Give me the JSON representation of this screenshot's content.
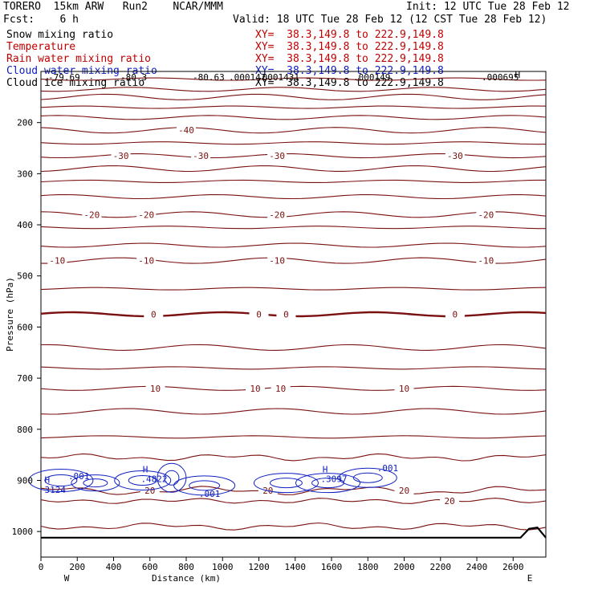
{
  "header": {
    "model": "TORERO  15km ARW   Run2    NCAR/MMM",
    "init": "Init: 12 UTC Tue 28 Feb 12",
    "fcst": "Fcst:    6 h",
    "valid": "Valid: 18 UTC Tue 28 Feb 12 (12 CST Tue 28 Feb 12)"
  },
  "legend": [
    {
      "label": "Snow mixing ratio",
      "xy": "XY=  38.3,149.8 to 222.9,149.8",
      "color": "#000000"
    },
    {
      "label": "Temperature",
      "xy": "XY=  38.3,149.8 to 222.9,149.8",
      "color": "#c00000"
    },
    {
      "label": "Rain water mixing ratio",
      "xy": "XY=  38.3,149.8 to 222.9,149.8",
      "color": "#c00000"
    },
    {
      "label": "Cloud water mixing ratio",
      "xy": "XY=  38.3,149.8 to 222.9,149.8",
      "color": "#1020c0"
    },
    {
      "label": "Cloud ice mixing ratio",
      "xy": "XY=  38.3,149.8 to 222.9,149.8",
      "color": "#000000"
    }
  ],
  "chart_data": {
    "type": "contour-cross-section",
    "xlabel": "Distance (km)",
    "ylabel": "Pressure (hPa)",
    "xlim": [
      0,
      2780
    ],
    "ylim": [
      1050,
      100
    ],
    "x_ticks": [
      0,
      200,
      400,
      600,
      800,
      1000,
      1200,
      1400,
      1600,
      1800,
      2000,
      2200,
      2400,
      2600
    ],
    "y_ticks": [
      200,
      300,
      400,
      500,
      600,
      700,
      800,
      900,
      1000
    ],
    "x_end_labels": [
      "W",
      "E"
    ],
    "temperature_contours": [
      {
        "value": -50,
        "pressure": 115
      },
      {
        "value": -50,
        "pressure": 135
      },
      {
        "value": -50,
        "pressure": 150
      },
      {
        "value": -50,
        "pressure": 170
      },
      {
        "value": -40,
        "pressure": 190
      },
      {
        "value": -40,
        "pressure": 215,
        "labels": [
          {
            "text": "-40",
            "x": 800
          }
        ]
      },
      {
        "value": -30,
        "pressure": 240
      },
      {
        "value": -30,
        "pressure": 265,
        "labels": [
          {
            "text": "-30",
            "x": 440
          },
          {
            "text": "-30",
            "x": 880
          },
          {
            "text": "-30",
            "x": 1300
          },
          {
            "text": "-30",
            "x": 2280
          }
        ]
      },
      {
        "value": -20,
        "pressure": 290
      },
      {
        "value": -20,
        "pressure": 315
      },
      {
        "value": -20,
        "pressure": 345
      },
      {
        "value": -20,
        "pressure": 380,
        "labels": [
          {
            "text": "-20",
            "x": 280
          },
          {
            "text": "-20",
            "x": 580
          },
          {
            "text": "-20",
            "x": 1300
          },
          {
            "text": "-20",
            "x": 2450
          }
        ]
      },
      {
        "value": -10,
        "pressure": 405
      },
      {
        "value": -10,
        "pressure": 440
      },
      {
        "value": -10,
        "pressure": 470,
        "labels": [
          {
            "text": "-10",
            "x": 90
          },
          {
            "text": "-10",
            "x": 580
          },
          {
            "text": "-10",
            "x": 1300
          },
          {
            "text": "-10",
            "x": 2450
          }
        ]
      },
      {
        "value": 0,
        "pressure": 525
      },
      {
        "value": 0,
        "pressure": 575,
        "bold": true,
        "labels": [
          {
            "text": "0",
            "x": 620
          },
          {
            "text": "0",
            "x": 1200
          },
          {
            "text": "0",
            "x": 1350
          },
          {
            "text": "0",
            "x": 2280
          }
        ]
      },
      {
        "value": 0,
        "pressure": 640
      },
      {
        "value": 10,
        "pressure": 680
      },
      {
        "value": 10,
        "pressure": 720,
        "labels": [
          {
            "text": "10",
            "x": 630
          },
          {
            "text": "10",
            "x": 1180
          },
          {
            "text": "10",
            "x": 1320
          },
          {
            "text": "10",
            "x": 2000
          }
        ]
      },
      {
        "value": 10,
        "pressure": 765
      },
      {
        "value": 20,
        "pressure": 815
      },
      {
        "value": 20,
        "pressure": 855
      },
      {
        "value": 20,
        "pressure": 920,
        "labels": [
          {
            "text": "20",
            "x": 600
          },
          {
            "text": "20",
            "x": 1250
          },
          {
            "text": "20",
            "x": 2000
          }
        ]
      },
      {
        "value": 20,
        "pressure": 940,
        "labels": [
          {
            "text": "20",
            "x": 2250
          }
        ]
      },
      {
        "value": 20,
        "pressure": 990
      }
    ],
    "top_labels": [
      "-79.69",
      "-80.3",
      "-80.63",
      ".000147",
      ".0001431",
      ".000149",
      ".000695"
    ],
    "cloud_water_labels": [
      {
        "text": "H",
        "x": 20,
        "p": 905
      },
      {
        "text": "3124",
        "x": 20,
        "p": 924
      },
      {
        "text": ".001",
        "x": 150,
        "p": 898
      },
      {
        "text": "H",
        "x": 560,
        "p": 884
      },
      {
        "text": ".4822",
        "x": 550,
        "p": 903
      },
      {
        "text": ".001",
        "x": 870,
        "p": 932
      },
      {
        "text": "H",
        "x": 1550,
        "p": 884
      },
      {
        "text": ".3097",
        "x": 1540,
        "p": 903
      },
      {
        "text": ".001",
        "x": 1850,
        "p": 882
      }
    ],
    "max_label": {
      "text": "H",
      "x": 2610,
      "p": 125
    },
    "surface_pressure": 1012
  }
}
